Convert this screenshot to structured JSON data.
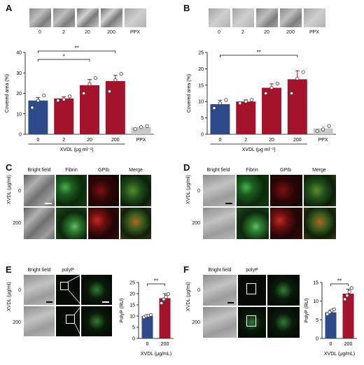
{
  "panels": {
    "A": {
      "label": "A",
      "thumb_labels": [
        "0",
        "2",
        "20",
        "200",
        "PPX"
      ]
    },
    "B": {
      "label": "B",
      "thumb_labels": [
        "0",
        "2",
        "20",
        "200",
        "PPX"
      ]
    },
    "C": {
      "label": "C",
      "headers": [
        "Bright field",
        "Fibrin",
        "GPIb",
        "Merge"
      ],
      "rows": [
        "0",
        "200"
      ],
      "ylabel": "XVDL (μg/ml)"
    },
    "D": {
      "label": "D",
      "headers": [
        "Bright field",
        "Fibrin",
        "GPIb",
        "Merge"
      ],
      "rows": [
        "0",
        "200"
      ],
      "ylabel": "XVDL (μg/ml)"
    },
    "E": {
      "label": "E",
      "headers": [
        "Bright field",
        "polyP"
      ],
      "rows": [
        "0",
        "200"
      ],
      "ylabel": "XVDL (μg/ml)"
    },
    "F": {
      "label": "F",
      "headers": [
        "Bright field",
        "polyP"
      ],
      "rows": [
        "0",
        "200"
      ],
      "ylabel": "XVDL (μg/ml)"
    }
  },
  "colors": {
    "blue": "#2e4a8a",
    "red": "#a3132c",
    "gray": "#c8c8c8"
  },
  "chart_data": [
    {
      "id": "A",
      "type": "bar",
      "categories": [
        "0",
        "2",
        "20",
        "200",
        "PPX"
      ],
      "values": [
        16.5,
        17.5,
        24,
        26,
        3.5
      ],
      "points": [
        [
          13,
          16.5,
          19
        ],
        [
          16.5,
          17,
          18.5
        ],
        [
          20,
          24.5,
          27.5
        ],
        [
          21,
          26.5,
          29.5
        ],
        [
          2.5,
          3.5,
          4
        ]
      ],
      "errors": [
        1.5,
        0.8,
        2.8,
        2.8,
        0.5
      ],
      "colors": [
        "blue",
        "red",
        "red",
        "red",
        "gray"
      ],
      "ylabel": "Covered area (%)",
      "xlabel": "XVDL (μg ml⁻¹)",
      "ylim": [
        0,
        40
      ],
      "yticks": [
        0,
        10,
        20,
        30,
        40
      ],
      "brackets": [
        {
          "from": 0,
          "to": 2,
          "label": "*"
        },
        {
          "from": 0,
          "to": 3,
          "label": "**"
        }
      ]
    },
    {
      "id": "B",
      "type": "bar",
      "categories": [
        "0",
        "2",
        "20",
        "200",
        "PPX"
      ],
      "values": [
        9.2,
        10,
        14.2,
        16.8,
        1.8
      ],
      "points": [
        [
          8,
          9.5,
          10.5
        ],
        [
          9.5,
          10,
          10.5
        ],
        [
          12.5,
          14.2,
          15.5
        ],
        [
          12.5,
          17,
          19
        ],
        [
          1,
          1.5,
          2.5
        ]
      ],
      "errors": [
        1.2,
        0.5,
        1.2,
        2.6,
        0.7
      ],
      "colors": [
        "blue",
        "red",
        "red",
        "red",
        "gray"
      ],
      "ylabel": "Covered area (%)",
      "xlabel": "XVDL (μg ml⁻¹)",
      "ylim": [
        0,
        25
      ],
      "yticks": [
        0,
        5,
        10,
        15,
        20,
        25
      ],
      "brackets": [
        {
          "from": 0,
          "to": 3,
          "label": "**"
        }
      ]
    },
    {
      "id": "E",
      "type": "bar",
      "categories": [
        "0",
        "200"
      ],
      "values": [
        10,
        18
      ],
      "points": [
        [
          9.5,
          10,
          10.2,
          10.5
        ],
        [
          15.8,
          17.5,
          18.5,
          19.8
        ]
      ],
      "errors": [
        0.6,
        2
      ],
      "colors": [
        "blue",
        "red"
      ],
      "ylabel": "PolyP (RU)",
      "xlabel": "XVDL (μg/mL)",
      "ylim": [
        0,
        25
      ],
      "yticks": [
        0,
        5,
        10,
        15,
        20,
        25
      ],
      "brackets": [
        {
          "from": 0,
          "to": 1,
          "label": "**"
        }
      ]
    },
    {
      "id": "F",
      "type": "bar",
      "categories": [
        "0",
        "200"
      ],
      "values": [
        7,
        12
      ],
      "points": [
        [
          6.5,
          7,
          7.5,
          7.8
        ],
        [
          10.5,
          11.5,
          12.5,
          13.5
        ]
      ],
      "errors": [
        0.6,
        1.2
      ],
      "colors": [
        "blue",
        "red"
      ],
      "ylabel": "PolyP (RU)",
      "xlabel": "XVDL (μg/mL)",
      "ylim": [
        0,
        15
      ],
      "yticks": [
        0,
        5,
        10,
        15
      ],
      "brackets": [
        {
          "from": 0,
          "to": 1,
          "label": "**"
        }
      ]
    }
  ]
}
